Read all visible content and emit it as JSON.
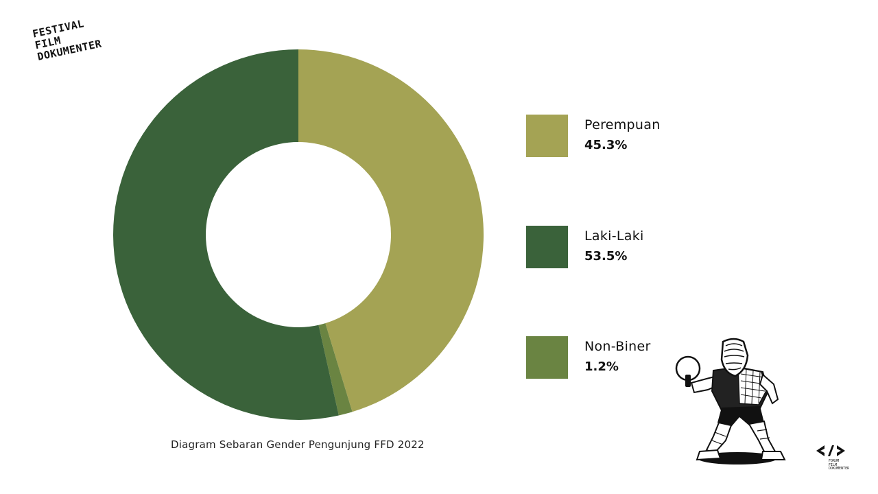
{
  "logo": {
    "lines": [
      "FESTIVAL",
      "FILM",
      "DOKUMENTER"
    ]
  },
  "corner_logo": {
    "lines": [
      "FORUM",
      "FILM",
      "DOKUMENTER"
    ]
  },
  "chart_data": {
    "type": "pie",
    "style": "donut",
    "title": "",
    "caption": "Diagram Sebaran Gender Pengunjung FFD 2022",
    "slices": [
      {
        "label": "Perempuan",
        "value": 45.3,
        "value_label": "45.3%",
        "color": "#a4a354"
      },
      {
        "label": "Non-Biner",
        "value": 1.2,
        "value_label": "1.2%",
        "color": "#6a8442"
      },
      {
        "label": "Laki-Laki",
        "value": 53.5,
        "value_label": "53.5%",
        "color": "#3a623a"
      }
    ],
    "legend_order": [
      "Perempuan",
      "Laki-Laki",
      "Non-Biner"
    ],
    "legend_position": "right",
    "start_angle_deg": 0,
    "direction": "clockwise"
  }
}
